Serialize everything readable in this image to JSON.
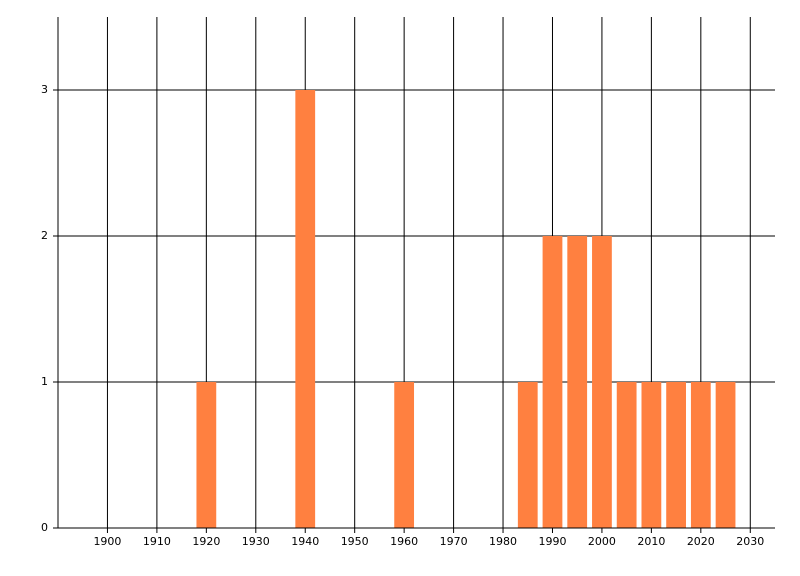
{
  "chart_data": {
    "type": "bar",
    "x": [
      1920,
      1940,
      1960,
      1985,
      1990,
      1995,
      2000,
      2005,
      2010,
      2015,
      2020,
      2025
    ],
    "values": [
      1,
      3,
      1,
      1,
      2,
      2,
      2,
      1,
      1,
      1,
      1,
      1
    ],
    "color": "#ff8040",
    "xlim": [
      1890,
      2035
    ],
    "xticks": [
      1900,
      1910,
      1920,
      1930,
      1940,
      1950,
      1960,
      1970,
      1980,
      1990,
      2000,
      2010,
      2020,
      2030
    ],
    "ylim": [
      0,
      3.5
    ],
    "yticks": [
      0,
      1,
      2,
      3
    ],
    "grid": true
  }
}
